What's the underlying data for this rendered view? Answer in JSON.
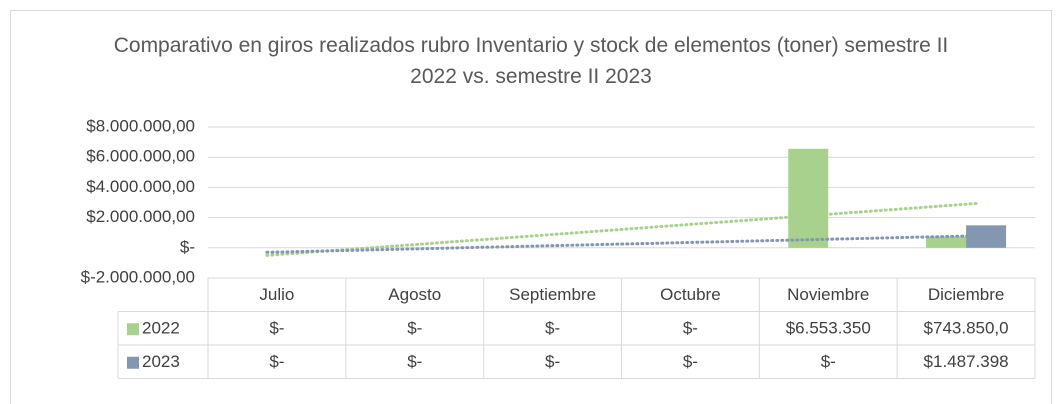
{
  "chart_data": {
    "type": "bar",
    "title": "Comparativo en giros realizados rubro Inventario y stock de elementos (toner) semestre II 2022 vs. semestre II 2023",
    "categories": [
      "Julio",
      "Agosto",
      "Septiembre",
      "Octubre",
      "Noviembre",
      "Diciembre"
    ],
    "series": [
      {
        "name": "2022",
        "color": "#a9d18e",
        "values": [
          0,
          0,
          0,
          0,
          6553350,
          743850
        ],
        "value_labels": [
          "$-",
          "$-",
          "$-",
          "$-",
          "$6.553.350",
          "$743.850,0"
        ]
      },
      {
        "name": "2023",
        "color": "#8497b0",
        "values": [
          0,
          0,
          0,
          0,
          0,
          1487398
        ],
        "value_labels": [
          "$-",
          "$-",
          "$-",
          "$-",
          "$-",
          "$1.487.398"
        ]
      }
    ],
    "ylim": [
      -2000000,
      8000000
    ],
    "yticks": [
      {
        "value": -2000000,
        "label": "$-2.000.000,00"
      },
      {
        "value": 0,
        "label": "$-"
      },
      {
        "value": 2000000,
        "label": "$2.000.000,00"
      },
      {
        "value": 4000000,
        "label": "$4.000.000,00"
      },
      {
        "value": 6000000,
        "label": "$6.000.000,00"
      },
      {
        "value": 8000000,
        "label": "$8.000.000,00"
      }
    ],
    "grid": true,
    "trendline": "linear",
    "data_table": true
  }
}
